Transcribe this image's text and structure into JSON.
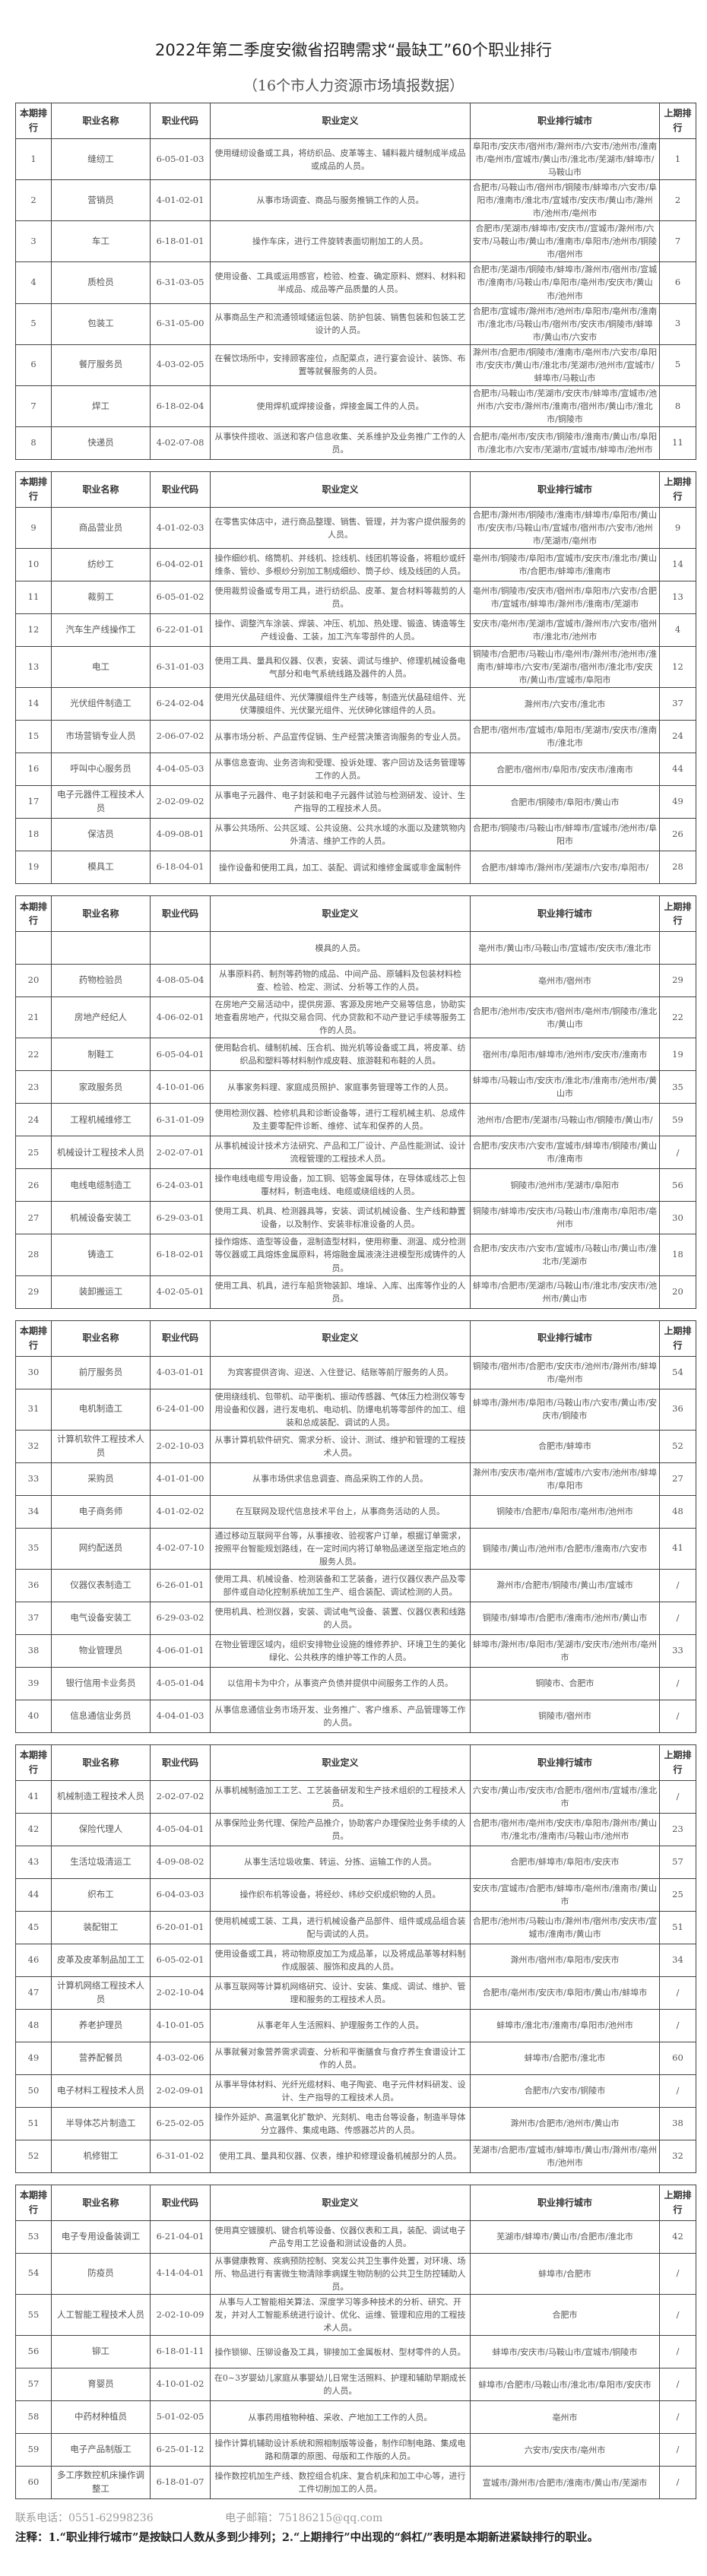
{
  "title": "2022年第二季度安徽省招聘需求“最缺工”60个职业排行",
  "subtitle": "（16个市人力资源市场填报数据）",
  "columns": [
    "本期排行",
    "职业名称",
    "职业代码",
    "职业定义",
    "职业排行城市",
    "上期排行"
  ],
  "tables": [
    {
      "rows": [
        [
          "1",
          "缝纫工",
          "6-05-01-03",
          "使用缝纫设备或工具，将纺织品、皮革等主、辅料裁片缝制成半成品或成品的人员。",
          "阜阳市/安庆市/宿州市/滁州市/六安市/池州市/淮南市/亳州市/宣城市/黄山市/淮北市/芜湖市/蚌埠市/马鞍山市",
          "1"
        ],
        [
          "2",
          "营销员",
          "4-01-02-01",
          "从事市场调查、商品与服务推销工作的人员。",
          "合肥市/马鞍山市/宿州市/铜陵市/蚌埠市/六安市/阜阳市/淮南市/淮北市/宣城市/安庆市/黄山市/滁州市/池州市/亳州市",
          "2"
        ],
        [
          "3",
          "车工",
          "6-18-01-01",
          "操作车床，进行工件旋转表面切削加工的人员。",
          "合肥市/芜湖市/蚌埠市/安庆市//宣城市/滁州市/六安市/马鞍山市/黄山市/淮南市/阜阳市/池州市/铜陵市/宿州市",
          "7"
        ],
        [
          "4",
          "质检员",
          "6-31-03-05",
          "使用设备、工具或运用感官，检验、检查、确定原料、燃料、材料和半成品、成品等产品质量的人员。",
          "合肥市/芜湖市/铜陵市/蚌埠市/滁州市/宿州市/宣城市/淮南市/马鞍山市/阜阳市/亳州市/安庆市/黄山市/池州市",
          "6"
        ],
        [
          "5",
          "包装工",
          "6-31-05-00",
          "从事商品生产和流通领域储运包装、防护包装、销售包装和包装工艺设计的人员。",
          "合肥市/宣城市/滁州市/池州市/阜阳市/亳州市/淮南市/淮北市/马鞍山市/宿州市/安庆市/铜陵市/蚌埠市/黄山市/六安市",
          "3"
        ],
        [
          "6",
          "餐厅服务员",
          "4-03-02-05",
          "在餐饮场所中，安排顾客座位，点配菜点，进行宴会设计、装饰、布置等就餐服务的人员。",
          "滁州市/合肥市/铜陵市/淮南市/亳州市/六安市/阜阳市/安庆市/黄山市/淮北市/芜湖市/池州市/宣城市/蚌埠市/马鞍山市",
          "5"
        ],
        [
          "7",
          "焊工",
          "6-18-02-04",
          "使用焊机或焊接设备，焊接金属工件的人员。",
          "合肥市/马鞍山市/芜湖市/安庆市/蚌埠市/宣城市/池州市/六安市/滁州市/淮南市/宿州市/黄山市/淮北市/铜陵市",
          "8"
        ],
        [
          "8",
          "快递员",
          "4-02-07-08",
          "从事快件揽收、派送和客户信息收集、关系维护及业务推广工作的人员。",
          "合肥市/亳州市/安庆市/铜陵市/淮南市/黄山市/阜阳市/淮北市/六安市/芜湖市/宣城市/蚌埠市/池州市",
          "11"
        ]
      ]
    },
    {
      "rows": [
        [
          "9",
          "商品营业员",
          "4-01-02-03",
          "在零售实体店中，进行商品整理、销售、管理，并为客户提供服务的人员。",
          "合肥市/滁州市/铜陵市/淮南市/蚌埠市/阜阳市/黄山市/安庆市/马鞍山市/宣城市/宿州市/六安市/池州市/芜湖市/亳州市",
          "9"
        ],
        [
          "10",
          "纺纱工",
          "6-04-02-01",
          "操作细纱机、络筒机、并线机、捻线机、线团机等设备，将粗纱或纤维条、管纱、多根纱分别加工制成细纱、筒子纱、线及线团的人员。",
          "亳州市/铜陵市/阜阳市/宣城市/安庆市/淮北市/黄山市/合肥市/蚌埠市/淮南市",
          "14"
        ],
        [
          "11",
          "裁剪工",
          "6-05-01-02",
          "使用裁剪设备或专用工具，进行纺织品、皮革、复合材料等裁剪的人员。",
          "亳州市/铜陵市/安庆市/宿州市/阜阳市/六安市/合肥市/宣城市/蚌埠市/滁州市/淮南市/芜湖市",
          "13"
        ],
        [
          "12",
          "汽车生产线操作工",
          "6-22-01-01",
          "操作、调整汽车涂装、焊装、冲压、机加、热处理、锻造、铸造等生产线设备、工装，加工汽车零部件的人员。",
          "安庆市/亳州市/芜湖市/宣城市/滁州市/六安市/宿州市/淮北市/池州市",
          "4"
        ],
        [
          "13",
          "电工",
          "6-31-01-03",
          "使用工具、量具和仪器、仪表，安装、调试与维护、修理机械设备电气部分和电气系统线路及器件的人员。",
          "铜陵市/合肥市/马鞍山市/亳州市/滁州市/池州市/淮南市/蚌埠市/六安市/芜湖市/宿州市/淮北市/安庆市/黄山市/宣城市/阜阳市",
          "12"
        ],
        [
          "14",
          "光伏组件制造工",
          "6-24-02-04",
          "使用光伏晶硅组件、光伏薄膜组件生产线等，制造光伏晶硅组件、光伏薄膜组件、光伏聚光组件、光伏砷化镓组件的人员。",
          "滁州市/六安市/淮北市",
          "37"
        ],
        [
          "15",
          "市场营销专业人员",
          "2-06-07-02",
          "从事市场分析、产品宣传促销、生产经营决策咨询服务的专业人员。",
          "合肥市/宿州市/宣城市/阜阳市/芜湖市/安庆市/淮南市/淮北市",
          "24"
        ],
        [
          "16",
          "呼叫中心服务员",
          "4-04-05-03",
          "从事信息查询、业务咨询和受理、投诉处理、客户回访及话务管理等工作的人员。",
          "合肥市/宿州市/阜阳市/安庆市/淮南市",
          "44"
        ],
        [
          "17",
          "电子元器件工程技术人员",
          "2-02-09-02",
          "从事电子元器件、电子封装和电子元器件试验与检测研发、设计、生产指导的工程技术人员。",
          "合肥市/铜陵市/阜阳市/黄山市",
          "49"
        ],
        [
          "18",
          "保洁员",
          "4-09-08-01",
          "从事公共场所、公共区域、公共设施、公共水域的水面以及建筑物内外清洁、维护工作的人员。",
          "合肥市/铜陵市/马鞍山市/蚌埠市/宣城市/池州市/阜阳市",
          "26"
        ],
        [
          "19",
          "模具工",
          "6-18-04-01",
          "操作设备和使用工具，加工、装配、调试和维修金属或非金属制件",
          "合肥市/蚌埠市/滁州市/芜湖市/六安市/阜阳市/",
          "28"
        ]
      ]
    },
    {
      "rows": [
        [
          "",
          "",
          "",
          "模具的人员。",
          "亳州市/黄山市/马鞍山市/宣城市/安庆市/淮北市",
          ""
        ],
        [
          "20",
          "药物检验员",
          "4-08-05-04",
          "从事原料药、制剂等药物的成品、中间产品、原辅料及包装材料检查、检验、检定、测试、分析等工作的人员。",
          "亳州市/宿州市",
          "29"
        ],
        [
          "21",
          "房地产经纪人",
          "4-06-02-01",
          "在房地产交易活动中，提供房源、客源及房地产交易等信息，协助实地查看房地产，代拟交易合同、代办贷款和不动产登记手续等服务工作的人员。",
          "合肥市/池州市/安庆市/宿州市/亳州市/铜陵市/淮北市/黄山市",
          "22"
        ],
        [
          "22",
          "制鞋工",
          "6-05-04-01",
          "使用黏合机、缝制机械、压合机、抛光机等设备或工具，将皮革、纺织品和塑料等材料制作成皮鞋、旅游鞋和布鞋的人员。",
          "宿州市/阜阳市/蚌埠市/池州市/安庆市/淮南市",
          "19"
        ],
        [
          "23",
          "家政服务员",
          "4-10-01-06",
          "从事家务料理、家庭成员照护、家庭事务管理等工作的人员。",
          "蚌埠市/马鞍山市/安庆市/淮北市/淮南市/池州市/黄山市",
          "35"
        ],
        [
          "24",
          "工程机械维修工",
          "6-31-01-09",
          "使用检测仪器、检修机具和诊断设备等，进行工程机械主机、总成件及主要零配件诊断、维修、试车和保养的人员。",
          "池州市/合肥市/芜湖市/马鞍山市/铜陵市/黄山市/",
          "59"
        ],
        [
          "25",
          "机械设计工程技术人员",
          "2-02-07-01",
          "从事机械设计技术方法研究、产品和工厂设计、产品性能测试、设计流程管理的工程技术人员。",
          "合肥市/安庆市/六安市/宣城市/蚌埠市/铜陵市/黄山市/淮南市",
          "/"
        ],
        [
          "26",
          "电线电缆制造工",
          "6-24-03-01",
          "操作电线电缆专用设备，加工铜、铝等金属导体，在导体或线芯上包覆材料，制造电线、电缆或绕组线的人员。",
          "铜陵市/池州市/芜湖市/阜阳市",
          "56"
        ],
        [
          "27",
          "机械设备安装工",
          "6-29-03-01",
          "使用工具、机具、检测器具等，安装、调试机械设备、生产线和静置设备，以及制作、安装非标准设备的人员。",
          "铜陵市/蚌埠市/安庆市/马鞍山市/淮南市/阜阳市/亳州市",
          "30"
        ],
        [
          "28",
          "铸造工",
          "6-18-02-01",
          "操作熔炼、造型等设备，混制造型材料，使用称重、测温、成分检测等仪器或工具熔炼金属原料，将熔融金属液浇注进模型形成铸件的人员。",
          "合肥市/安庆市/六安市/宣城市/马鞍山市/黄山市/淮北市/芜湖市",
          "18"
        ],
        [
          "29",
          "装卸搬运工",
          "4-02-05-01",
          "使用工具、机具，进行车船货物装卸、堆垛、入库、出库等作业的人员。",
          "蚌埠市/合肥市/芜湖市/马鞍山市/淮北市/安庆市/池州市/黄山市",
          "20"
        ]
      ]
    },
    {
      "rows": [
        [
          "30",
          "前厅服务员",
          "4-03-01-01",
          "为宾客提供咨询、迎送、入住登记、结账等前厅服务的人员。",
          "铜陵市/宿州市/合肥市/安庆市/池州市/滁州市/蚌埠市/亳州市",
          "54"
        ],
        [
          "31",
          "电机制造工",
          "6-24-01-00",
          "使用绕线机、包带机、动平衡机、振动传感器、气体压力检测仪等专用设备和仪器，进行发电机、电动机、防爆电机等零部件的加工、组装和总成装配、调试的人员。",
          "蚌埠市/滁州市/阜阳市/马鞍山市/六安市/黄山市/安庆市/铜陵市",
          "36"
        ],
        [
          "32",
          "计算机软件工程技术人员",
          "2-02-10-03",
          "从事计算机软件研究、需求分析、设计、测试、维护和管理的工程技术人员。",
          "合肥市/蚌埠市",
          "52"
        ],
        [
          "33",
          "采购员",
          "4-01-01-00",
          "从事市场供求信息调查、商品采购工作的人员。",
          "滁州市/安庆市/亳州市/宣城市/六安市/池州市/蚌埠市/阜阳市",
          "27"
        ],
        [
          "34",
          "电子商务师",
          "4-01-02-02",
          "在互联网及现代信息技术平台上，从事商务活动的人员。",
          "铜陵市/合肥市/阜阳市/亳州市/池州市",
          "48"
        ],
        [
          "35",
          "网约配送员",
          "4-02-07-10",
          "通过移动互联网平台等，从事接收、验视客户订单，根据订单需求，按照平台智能规划路线，在一定时间内将订单物品递送至指定地点的服务人员。",
          "铜陵市/黄山市/池州市/合肥市/淮南市/六安市",
          "41"
        ],
        [
          "36",
          "仪器仪表制造工",
          "6-26-01-01",
          "使用工具、机械设备、检测装备和工艺装备，进行仪器仪表产品及零部件或自动化控制系统加工生产、组合装配、调试检测的人员。",
          "滁州市/合肥市/铜陵市/黄山市/宣城市",
          "/"
        ],
        [
          "37",
          "电气设备安装工",
          "6-29-03-02",
          "使用机具、检测仪器，安装、调试电气设备、装置、仪器仪表和线路的人员。",
          "铜陵市/蚌埠市/合肥市/淮南市/池州市/黄山市",
          "/"
        ],
        [
          "38",
          "物业管理员",
          "4-06-01-01",
          "在物业管理区域内，组织安排物业设施的维修养护、环境卫生的美化绿化、公共秩序的维护等工作的人员。",
          "蚌埠市/滁州市/阜阳市/芜湖市/安庆市/池州市/亳州市",
          "33"
        ],
        [
          "39",
          "银行信用卡业务员",
          "4-05-01-04",
          "以信用卡为中介，从事资产负债并提供中间服务工作的人员。",
          "铜陵市、合肥市",
          "/"
        ],
        [
          "40",
          "信息通信业务员",
          "4-04-01-03",
          "从事信息通信业务市场开发、业务推广、客户维系、产品管理等工作的人员。",
          "铜陵市/宿州市",
          "/"
        ]
      ]
    },
    {
      "rows": [
        [
          "41",
          "机械制造工程技术人员",
          "2-02-07-02",
          "从事机械制造加工工艺、工艺装备研发和生产技术组织的工程技术人员。",
          "六安市/黄山市/安庆市/合肥市/宿州市/宣城市/淮北市",
          "/"
        ],
        [
          "42",
          "保险代理人",
          "4-05-04-01",
          "从事保险业务代理、保险产品推介，协助客户办理保险业务手续的人员。",
          "合肥市/宿州市/亳州市/安庆市/阜阳市/滁州市/黄山市/淮北市/淮南市/马鞍山市/池州市",
          "23"
        ],
        [
          "43",
          "生活垃圾清运工",
          "4-09-08-02",
          "从事生活垃圾收集、转运、分拣、运输工作的人员。",
          "合肥市/蚌埠市/阜阳市/安庆市",
          "57"
        ],
        [
          "44",
          "织布工",
          "6-04-03-03",
          "操作织布机等设备，将经纱、纬纱交织成织物的人员。",
          "安庆市/宣城市/合肥市/蚌埠市/亳州市/淮南市/黄山市",
          "25"
        ],
        [
          "45",
          "装配钳工",
          "6-20-01-01",
          "使用机械或工装、工具，进行机械设备产品部件、组件或成品组合装配与调试的人员。",
          "合肥市/池州市/马鞍山市/滁州市/宿州市/安庆市/宣城市/淮南市/黄山市",
          "51"
        ],
        [
          "46",
          "皮革及皮革制品加工工",
          "6-05-02-01",
          "使用设备或工具，将动物原皮加工为成品革，以及将成品革等材料制作成服装、服饰和皮具的人员。",
          "滁州市/宿州市/阜阳市/安庆市",
          "34"
        ],
        [
          "47",
          "计算机网络工程技术人员",
          "2-02-10-04",
          "从事互联网等计算机网络研究、设计、安装、集成、调试、维护、管理和服务的工程技术人员。",
          "合肥市/亳州市/安庆市/阜阳市/黄山市/蚌埠市",
          "/"
        ],
        [
          "48",
          "养老护理员",
          "4-10-01-05",
          "从事老年人生活照料、护理服务工作的人员。",
          "蚌埠市/淮北市/淮南市/阜阳市/池州市",
          "/"
        ],
        [
          "49",
          "营养配餐员",
          "4-03-02-06",
          "从事就餐对象营养需求调查、分析和平衡膳食与食疗养生食谱设计工作的人员。",
          "蚌埠市/合肥市/淮北市",
          "60"
        ],
        [
          "50",
          "电子材料工程技术人员",
          "2-02-09-01",
          "从事半导体材料、光纤光缆材料、电子陶瓷、电子元件材料研发、设计、生产指导的工程技术人员。",
          "合肥市/六安市/铜陵市",
          "/"
        ],
        [
          "51",
          "半导体芯片制造工",
          "6-25-02-05",
          "操作外延炉、高温氧化扩散炉、光刻机、电击台等设备，制造半导体分立器件、集成电路、传感器芯片的人员。",
          "滁州市/合肥市/池州市/黄山市",
          "38"
        ],
        [
          "52",
          "机修钳工",
          "6-31-01-02",
          "使用工具、量具和仪器、仪表，维护和修理设备机械部分的人员。",
          "芜湖市/合肥市/宣城市/蚌埠市/黄山市/滁州市/亳州市/池州市",
          "32"
        ]
      ]
    },
    {
      "rows": [
        [
          "53",
          "电子专用设备装调工",
          "6-21-04-01",
          "使用真空镀膜机、键合机等设备、仪器仪表和工具，装配、调试电子产品专用工艺设备和测试设备的人员。",
          "芜湖市/蚌埠市/黄山市/合肥市/淮北市",
          "42"
        ],
        [
          "54",
          "防疫员",
          "4-14-04-01",
          "从事健康教育、疾病预防控制、突发公共卫生事件处置，对环境、场所、物品进行有害微生物清除季病媒生物防制的公共卫生防控辅助人员。",
          "蚌埠市/合肥市",
          "/"
        ],
        [
          "55",
          "人工智能工程技术人员",
          "2-02-10-09",
          "从事与人工智能相关算法、深度学习等多种技术的分析、研究、开发，并对人工智能系统进行设计、优化、运维、管理和应用的工程技术人员。",
          "合肥市",
          "/"
        ],
        [
          "56",
          "铆工",
          "6-18-01-11",
          "操作锁铆、压铆设备及工具，铆接加工金属板材、型材零件的人员。",
          "蚌埠市/安庆市/马鞍山市/宣城市/铜陵市",
          "/"
        ],
        [
          "57",
          "育婴员",
          "4-10-01-02",
          "在0~3岁婴幼儿家庭从事婴幼儿日常生活照料、护理和辅助早期成长的人员。",
          "蚌埠市/合肥市/马鞍山市/淮北市/阜阳市/安庆市",
          "/"
        ],
        [
          "58",
          "中药材种植员",
          "5-01-02-05",
          "从事药用植物种植、采收、产地加工工作的人员。",
          "亳州市",
          "/"
        ],
        [
          "59",
          "电子产品制版工",
          "6-25-01-12",
          "操作计算机辅助设计系统和照相制版等设备，制作印制电路、集成电路和荫罩的原图、母版和工作版的人员。",
          "六安市/安庆市/亳州市",
          "/"
        ],
        [
          "60",
          "多工序数控机床操作调整工",
          "6-18-01-07",
          "操作数控机加生产线、数控组合机床、复合机床和加工中心等，进行工件切削加工的人员。",
          "宣城市/滁州市/合肥市/淮南市/黄山市/芜湖市",
          "/"
        ]
      ]
    }
  ],
  "footer": {
    "phone": "联系电话：0551-62998236",
    "email": "电子邮箱：75186215@qq.com",
    "note": "注释：1.“职业排行城市”是按缺口人数从多到少排列；2.“上期排行”中出现的“斜杠/”表明是本期新进紧缺排行的职业。"
  }
}
